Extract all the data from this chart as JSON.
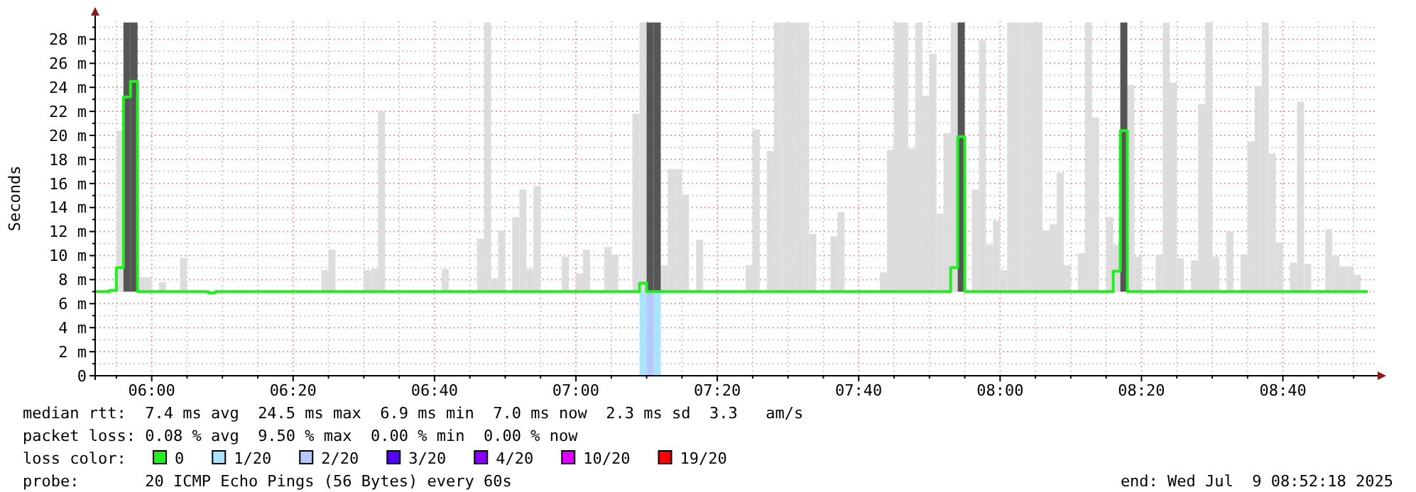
{
  "chart_data": {
    "type": "bar",
    "ylabel": "Seconds",
    "legend_title": "loss color:",
    "legend": "bottom",
    "grid": true,
    "annotations": [
      "median rtt:  7.4 ms avg  24.5 ms max  6.9 ms min  7.0 ms now  2.3 ms sd  3.3   am/s",
      "packet loss: 0.08 % avg  9.50 % max  0.00 % min  0.00 % now",
      "probe:       20 ICMP Echo Pings (56 Bytes) every 60s",
      "end: Wed Jul  9 08:52:18 2025"
    ],
    "xlim": [
      "2025-07-09T05:52",
      "2025-07-09T08:53"
    ],
    "xticks": [
      {
        "value": "2025-07-09T05:55",
        "label": null
      },
      {
        "value": "2025-07-09T06:00",
        "label": "06:00"
      },
      {
        "value": "2025-07-09T06:05",
        "label": null
      },
      {
        "value": "2025-07-09T06:10",
        "label": null
      },
      {
        "value": "2025-07-09T06:15",
        "label": null
      },
      {
        "value": "2025-07-09T06:20",
        "label": "06:20"
      },
      {
        "value": "2025-07-09T06:25",
        "label": null
      },
      {
        "value": "2025-07-09T06:30",
        "label": null
      },
      {
        "value": "2025-07-09T06:35",
        "label": null
      },
      {
        "value": "2025-07-09T06:40",
        "label": "06:40"
      },
      {
        "value": "2025-07-09T06:45",
        "label": null
      },
      {
        "value": "2025-07-09T06:50",
        "label": null
      },
      {
        "value": "2025-07-09T06:55",
        "label": null
      },
      {
        "value": "2025-07-09T07:00",
        "label": "07:00"
      },
      {
        "value": "2025-07-09T07:05",
        "label": null
      },
      {
        "value": "2025-07-09T07:10",
        "label": null
      },
      {
        "value": "2025-07-09T07:15",
        "label": null
      },
      {
        "value": "2025-07-09T07:20",
        "label": "07:20"
      },
      {
        "value": "2025-07-09T07:25",
        "label": null
      },
      {
        "value": "2025-07-09T07:30",
        "label": null
      },
      {
        "value": "2025-07-09T07:35",
        "label": null
      },
      {
        "value": "2025-07-09T07:40",
        "label": "07:40"
      },
      {
        "value": "2025-07-09T07:45",
        "label": null
      },
      {
        "value": "2025-07-09T07:50",
        "label": null
      },
      {
        "value": "2025-07-09T07:55",
        "label": null
      },
      {
        "value": "2025-07-09T08:00",
        "label": "08:00"
      },
      {
        "value": "2025-07-09T08:05",
        "label": null
      },
      {
        "value": "2025-07-09T08:10",
        "label": null
      },
      {
        "value": "2025-07-09T08:15",
        "label": null
      },
      {
        "value": "2025-07-09T08:20",
        "label": "08:20"
      },
      {
        "value": "2025-07-09T08:25",
        "label": null
      },
      {
        "value": "2025-07-09T08:30",
        "label": null
      },
      {
        "value": "2025-07-09T08:35",
        "label": null
      },
      {
        "value": "2025-07-09T08:40",
        "label": "08:40"
      },
      {
        "value": "2025-07-09T08:45",
        "label": null
      },
      {
        "value": "2025-07-09T08:50",
        "label": null
      }
    ],
    "ylim": [
      0,
      29.5
    ],
    "yticks": [
      0,
      {
        "value": 1,
        "label": null
      },
      {
        "value": 2,
        "label": "2 m"
      },
      {
        "value": 3,
        "label": null
      },
      {
        "value": 4,
        "label": "4 m"
      },
      {
        "value": 5,
        "label": null
      },
      {
        "value": 6,
        "label": "6 m"
      },
      {
        "value": 7,
        "label": null
      },
      {
        "value": 8,
        "label": "8 m"
      },
      {
        "value": 9,
        "label": null
      },
      {
        "value": 10,
        "label": "10 m"
      },
      {
        "value": 11,
        "label": null
      },
      {
        "value": 12,
        "label": "12 m"
      },
      {
        "value": 13,
        "label": null
      },
      {
        "value": 14,
        "label": "14 m"
      },
      {
        "value": 15,
        "label": null
      },
      {
        "value": 16,
        "label": "16 m"
      },
      {
        "value": 17,
        "label": null
      },
      {
        "value": 18,
        "label": "18 m"
      },
      {
        "value": 19,
        "label": null
      },
      {
        "value": 20,
        "label": "20 m"
      },
      {
        "value": 21,
        "label": null
      },
      {
        "value": 22,
        "label": "22 m"
      },
      {
        "value": 23,
        "label": null
      },
      {
        "value": 24,
        "label": "24 m"
      },
      {
        "value": 25,
        "label": null
      },
      {
        "value": 26,
        "label": "26 m"
      },
      {
        "value": 27,
        "label": null
      },
      {
        "value": 28,
        "label": "28 m"
      },
      {
        "value": 29,
        "label": null
      }
    ],
    "series": [
      {
        "color": "#dddddd",
        "x": [
          "2025-07-09T05:55",
          "2025-07-09T05:58",
          "2025-07-09T05:59",
          "2025-07-09T06:01",
          "2025-07-09T06:04",
          "2025-07-09T06:24",
          "2025-07-09T06:25",
          "2025-07-09T06:30",
          "2025-07-09T06:31",
          "2025-07-09T06:32",
          "2025-07-09T06:41",
          "2025-07-09T06:46",
          "2025-07-09T06:47",
          "2025-07-09T06:48",
          "2025-07-09T06:49",
          "2025-07-09T06:51",
          "2025-07-09T06:52",
          "2025-07-09T06:53",
          "2025-07-09T06:54",
          "2025-07-09T06:58",
          "2025-07-09T07:00",
          "2025-07-09T07:01",
          "2025-07-09T07:04",
          "2025-07-09T07:05",
          "2025-07-09T07:08",
          "2025-07-09T07:09",
          "2025-07-09T07:12",
          "2025-07-09T07:13",
          "2025-07-09T07:14",
          "2025-07-09T07:15",
          "2025-07-09T07:17",
          "2025-07-09T07:24",
          "2025-07-09T07:25",
          "2025-07-09T07:27",
          "2025-07-09T07:28",
          "2025-07-09T07:29",
          "2025-07-09T07:30",
          "2025-07-09T07:31",
          "2025-07-09T07:32",
          "2025-07-09T07:33",
          "2025-07-09T07:36",
          "2025-07-09T07:37",
          "2025-07-09T07:43",
          "2025-07-09T07:44",
          "2025-07-09T07:45",
          "2025-07-09T07:46",
          "2025-07-09T07:47",
          "2025-07-09T07:48",
          "2025-07-09T07:49",
          "2025-07-09T07:50",
          "2025-07-09T07:51",
          "2025-07-09T07:52",
          "2025-07-09T07:53",
          "2025-07-09T07:56",
          "2025-07-09T07:57",
          "2025-07-09T07:58",
          "2025-07-09T07:59",
          "2025-07-09T08:00",
          "2025-07-09T08:01",
          "2025-07-09T08:02",
          "2025-07-09T08:03",
          "2025-07-09T08:04",
          "2025-07-09T08:05",
          "2025-07-09T08:06",
          "2025-07-09T08:07",
          "2025-07-09T08:08",
          "2025-07-09T08:09",
          "2025-07-09T08:11",
          "2025-07-09T08:12",
          "2025-07-09T08:13",
          "2025-07-09T08:15",
          "2025-07-09T08:16",
          "2025-07-09T08:18",
          "2025-07-09T08:19",
          "2025-07-09T08:22",
          "2025-07-09T08:23",
          "2025-07-09T08:24",
          "2025-07-09T08:25",
          "2025-07-09T08:27",
          "2025-07-09T08:28",
          "2025-07-09T08:29",
          "2025-07-09T08:30",
          "2025-07-09T08:32",
          "2025-07-09T08:34",
          "2025-07-09T08:35",
          "2025-07-09T08:36",
          "2025-07-09T08:37",
          "2025-07-09T08:38",
          "2025-07-09T08:39",
          "2025-07-09T08:41",
          "2025-07-09T08:42",
          "2025-07-09T08:43",
          "2025-07-09T08:46",
          "2025-07-09T08:47",
          "2025-07-09T08:48",
          "2025-07-09T08:49",
          "2025-07-09T08:50"
        ],
        "base": [
          7,
          7,
          7,
          7,
          7,
          7,
          7,
          7,
          7,
          7,
          7,
          7,
          7,
          7,
          7,
          7,
          7,
          7,
          7,
          7,
          7,
          7,
          7,
          7,
          7,
          7,
          7,
          7,
          7,
          7,
          7,
          7,
          7,
          7,
          7,
          7,
          7,
          7,
          7,
          7,
          7,
          7,
          7,
          7,
          7,
          7,
          7,
          7,
          7,
          7,
          7,
          7,
          7,
          7,
          7,
          7,
          7,
          7,
          7,
          7,
          7,
          7,
          7,
          7,
          7,
          7,
          7,
          7,
          7,
          7,
          7,
          7,
          7,
          7,
          7,
          7,
          7,
          7,
          7,
          7,
          7,
          7,
          7,
          7,
          7,
          7,
          7,
          7,
          7,
          7,
          7,
          7,
          7,
          7,
          7,
          7,
          7
        ],
        "values": [
          13.4,
          1.2,
          1.2,
          0.8,
          2.8,
          1.8,
          3.5,
          1.8,
          1.9,
          15,
          1.9,
          4.4,
          22.4,
          1.1,
          5.1,
          6.2,
          8.5,
          1.9,
          8.8,
          2.9,
          1.5,
          3.5,
          3.7,
          3.1,
          14.8,
          22.4,
          2.2,
          10.2,
          10.2,
          8.1,
          4.3,
          2.2,
          13.5,
          11.7,
          22.4,
          22.4,
          22.4,
          22.4,
          22.4,
          4.8,
          4.6,
          6.6,
          1.6,
          11.8,
          22.4,
          22.4,
          11.9,
          22.4,
          16.3,
          19.8,
          6.5,
          13.2,
          22.4,
          8.5,
          20.9,
          3.9,
          5.9,
          1.8,
          22.4,
          22.4,
          22.4,
          22.4,
          22.4,
          5.1,
          5.6,
          9.9,
          2.2,
          3.2,
          22.4,
          14.5,
          6.2,
          3.9,
          17.2,
          2.9,
          3.1,
          22.4,
          17.4,
          2.8,
          2.6,
          15.6,
          22.4,
          2.9,
          5,
          3.1,
          12.5,
          17.1,
          22.4,
          11.5,
          4.1,
          2.4,
          15.8,
          2.3,
          5.2,
          3,
          2.1,
          2.1,
          1.4
        ]
      },
      {
        "color": "#555555",
        "x": [
          "2025-07-09T05:56",
          "2025-07-09T05:57",
          "2025-07-09T07:10",
          "2025-07-09T07:11",
          "2025-07-09T07:54",
          "2025-07-09T08:17"
        ],
        "base": [
          7,
          7,
          7,
          7,
          7,
          7
        ],
        "values": [
          22.4,
          22.4,
          22.4,
          22.4,
          22.4,
          22.4
        ]
      },
      {
        "type": "step",
        "name": "0",
        "color": "#22ee22",
        "x": [
          "2025-07-09T05:52",
          "2025-07-09T05:54",
          "2025-07-09T05:55",
          "2025-07-09T05:56",
          "2025-07-09T05:57",
          "2025-07-09T05:58",
          "2025-07-09T06:08",
          "2025-07-09T06:09",
          "2025-07-09T07:09",
          "2025-07-09T07:10",
          "2025-07-09T07:53",
          "2025-07-09T07:54",
          "2025-07-09T07:55",
          "2025-07-09T08:16",
          "2025-07-09T08:17",
          "2025-07-09T08:18",
          "2025-07-09T08:52"
        ],
        "values": [
          7,
          7.1,
          9,
          23.2,
          24.5,
          7,
          6.9,
          7,
          7.7,
          7,
          9,
          19.9,
          7,
          8.7,
          20.4,
          7,
          7
        ]
      },
      {
        "name": "1/20",
        "color": "#a8e4ff",
        "x": [
          "2025-07-09T07:09",
          "2025-07-09T07:11"
        ],
        "values": [
          7,
          7
        ]
      },
      {
        "name": "2/20",
        "color": "#b4c8ff",
        "x": [
          "2025-07-09T07:10"
        ],
        "values": [
          7
        ]
      },
      {
        "name": "3/20",
        "color": "#5500ff"
      },
      {
        "name": "4/20",
        "color": "#8a00ff"
      },
      {
        "name": "10/20",
        "color": "#dd00ff"
      },
      {
        "name": "19/20",
        "color": "#ff0000"
      }
    ]
  }
}
